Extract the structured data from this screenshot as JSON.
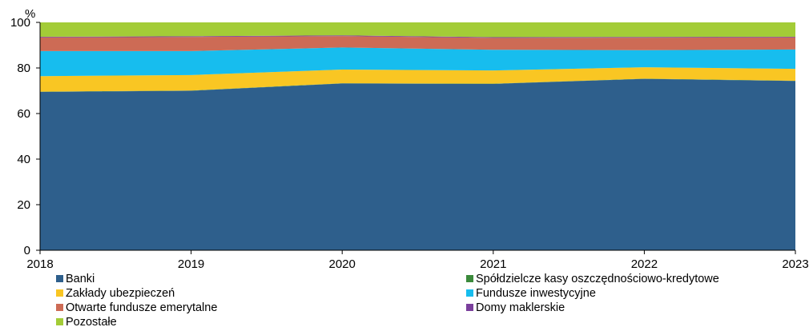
{
  "chart_data": {
    "type": "area",
    "stacked": true,
    "ylabel": "%",
    "ylim": [
      0,
      100
    ],
    "yticks": [
      0,
      20,
      40,
      60,
      80,
      100
    ],
    "x": [
      "2018",
      "2019",
      "2020",
      "2021",
      "2022",
      "2023"
    ],
    "grid": false,
    "legend_position": "bottom",
    "series": [
      {
        "name": "Banki",
        "color": "#2e5f8c",
        "values": [
          69.5,
          70.0,
          73.2,
          73.0,
          75.2,
          74.3
        ]
      },
      {
        "name": "Spółdzielcze kasy oszczędnościowo-kredytowe",
        "color": "#3b8a3b",
        "values": [
          0.1,
          0.1,
          0.1,
          0.1,
          0.1,
          0.1
        ]
      },
      {
        "name": "Zakłady ubezpieczeń",
        "color": "#f9c623",
        "values": [
          6.8,
          6.8,
          6.0,
          5.8,
          5.0,
          5.2
        ]
      },
      {
        "name": "Fundusze inwestycyjne",
        "color": "#17bdee",
        "values": [
          11.0,
          10.5,
          9.7,
          9.1,
          7.5,
          8.5
        ]
      },
      {
        "name": "Otwarte fundusze emerytalne",
        "color": "#cd6b55",
        "values": [
          6.0,
          6.2,
          5.0,
          5.2,
          5.5,
          5.3
        ]
      },
      {
        "name": "Domy maklerskie",
        "color": "#7a3f9c",
        "values": [
          0.3,
          0.3,
          0.3,
          0.3,
          0.3,
          0.3
        ]
      },
      {
        "name": "Pozostałe",
        "color": "#a3cc37",
        "values": [
          6.3,
          6.1,
          5.7,
          6.5,
          6.4,
          6.3
        ]
      }
    ]
  }
}
